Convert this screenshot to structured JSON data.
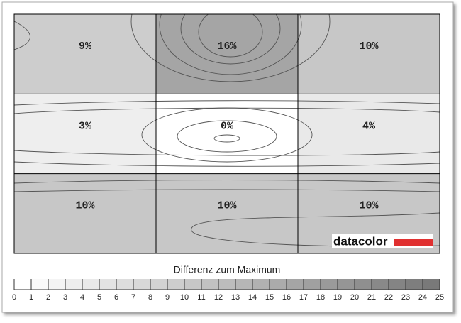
{
  "chart_data": {
    "type": "heatmap",
    "title": "Differenz zum Maximum",
    "logo": "datacolor",
    "values": [
      [
        9,
        16,
        10
      ],
      [
        3,
        0,
        4
      ],
      [
        10,
        10,
        10
      ]
    ],
    "value_labels": [
      [
        "9%",
        "16%",
        "10%"
      ],
      [
        "3%",
        "0%",
        "4%"
      ],
      [
        "10%",
        "10%",
        "10%"
      ]
    ],
    "clim": [
      0,
      25
    ],
    "colorbar_ticks": [
      0,
      1,
      2,
      3,
      4,
      5,
      6,
      7,
      8,
      9,
      10,
      11,
      12,
      13,
      14,
      15,
      16,
      17,
      18,
      19,
      20,
      21,
      22,
      23,
      24,
      25
    ]
  }
}
